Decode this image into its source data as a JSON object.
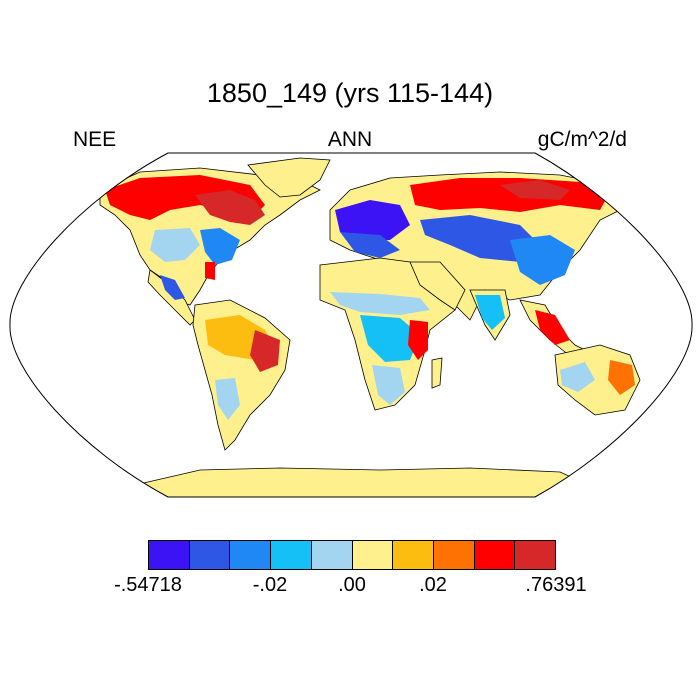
{
  "title": "1850_149 (yrs 115-144)",
  "subtitle_left": "NEE",
  "subtitle_center": "ANN",
  "subtitle_right": "gC/m^2/d",
  "colorbar": {
    "colors": [
      "#3b13f5",
      "#2f57e5",
      "#2088f4",
      "#15c0f7",
      "#a3d4f0",
      "#fef08d",
      "#fdbd10",
      "#fe7204",
      "#fe0000",
      "#d62828"
    ],
    "tick_labels": [
      "-.54718",
      "-.02",
      ".00",
      ".02",
      ".76391"
    ]
  },
  "map": {
    "projection": "Robinson",
    "ocean_color": "#ffffff",
    "land_base_color": "#fef08d"
  }
}
